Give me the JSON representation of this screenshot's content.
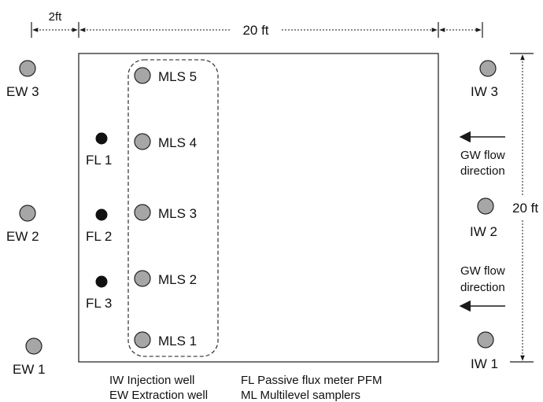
{
  "dimensions": {
    "offset_label": "2ft",
    "width_label": "20 ft",
    "height_label": "20 ft"
  },
  "extraction_wells": [
    {
      "label": "EW 3"
    },
    {
      "label": "EW 2"
    },
    {
      "label": "EW 1"
    }
  ],
  "injection_wells": [
    {
      "label": "IW 3"
    },
    {
      "label": "IW 2"
    },
    {
      "label": "IW 1"
    }
  ],
  "flux_meters": [
    {
      "label": "FL 1"
    },
    {
      "label": "FL 2"
    },
    {
      "label": "FL 3"
    }
  ],
  "multilevel_samplers": [
    {
      "label": "MLS 5"
    },
    {
      "label": "MLS 4"
    },
    {
      "label": "MLS 3"
    },
    {
      "label": "MLS 2"
    },
    {
      "label": "MLS 1"
    }
  ],
  "flow_labels": [
    {
      "line1": "GW flow",
      "line2": "direction"
    },
    {
      "line1": "GW flow",
      "line2": "direction"
    }
  ],
  "legend": {
    "iw": "IW  Injection well",
    "ew": "EW Extraction well",
    "fl": "FL  Passive flux meter PFM",
    "ml": "ML Multilevel samplers"
  },
  "colors": {
    "well_fill": "#a6a6a6",
    "meter_fill": "#111111",
    "line": "#1a1a1a"
  }
}
